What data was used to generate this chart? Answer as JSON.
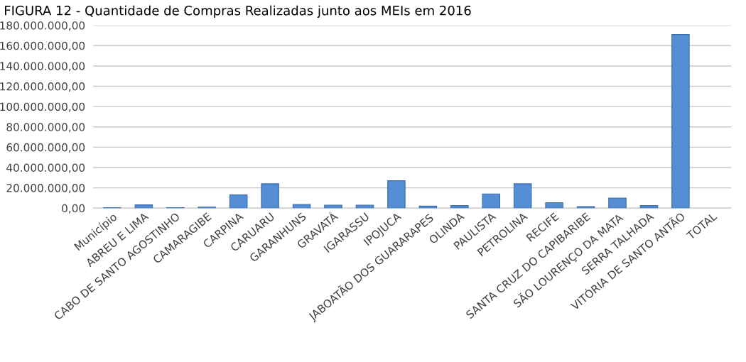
{
  "chart_data": {
    "type": "bar",
    "title": "FIGURA 12 - Quantidade de Compras Realizadas junto aos MEIs em 2016",
    "categories": [
      "Município",
      "ABREU E LIMA",
      "CABO DE SANTO AGOSTINHO",
      "CAMARAGIBE",
      "CARPINA",
      "CARUARU",
      "GARANHUNS",
      "GRAVATÁ",
      "IGARASSU",
      "IPOJUCA",
      "JABOATÃO DOS GUARARAPES",
      "OLINDA",
      "PAULISTA",
      "PETROLINA",
      "RECIFE",
      "SANTA CRUZ DO CAPIBARIBE",
      "SÃO LOURENÇO DA MATA",
      "SERRA TALHADA",
      "VITÓRIA DE SANTO ANTÃO",
      "TOTAL"
    ],
    "values": [
      500000,
      3200000,
      500000,
      1000000,
      13000000,
      24000000,
      3700000,
      3000000,
      3000000,
      27000000,
      2000000,
      2500000,
      14000000,
      24000000,
      5400000,
      1500000,
      10000000,
      2500000,
      171000000,
      null
    ],
    "color": "#558ed5",
    "ylim": [
      0,
      180000000
    ],
    "yticks": [
      {
        "value": 0,
        "label": "0,00"
      },
      {
        "value": 20000000,
        "label": "20.000.000,00"
      },
      {
        "value": 40000000,
        "label": "40.000.000,00"
      },
      {
        "value": 60000000,
        "label": "60.000.000,00"
      },
      {
        "value": 80000000,
        "label": "80.000.000,00"
      },
      {
        "value": 100000000,
        "label": "100.000.000,00"
      },
      {
        "value": 120000000,
        "label": "120.000.000,00"
      },
      {
        "value": 140000000,
        "label": "140.000.000,00"
      },
      {
        "value": 160000000,
        "label": "160.000.000,00"
      },
      {
        "value": 180000000,
        "label": "180.000.000,00"
      }
    ],
    "grid": "y"
  }
}
